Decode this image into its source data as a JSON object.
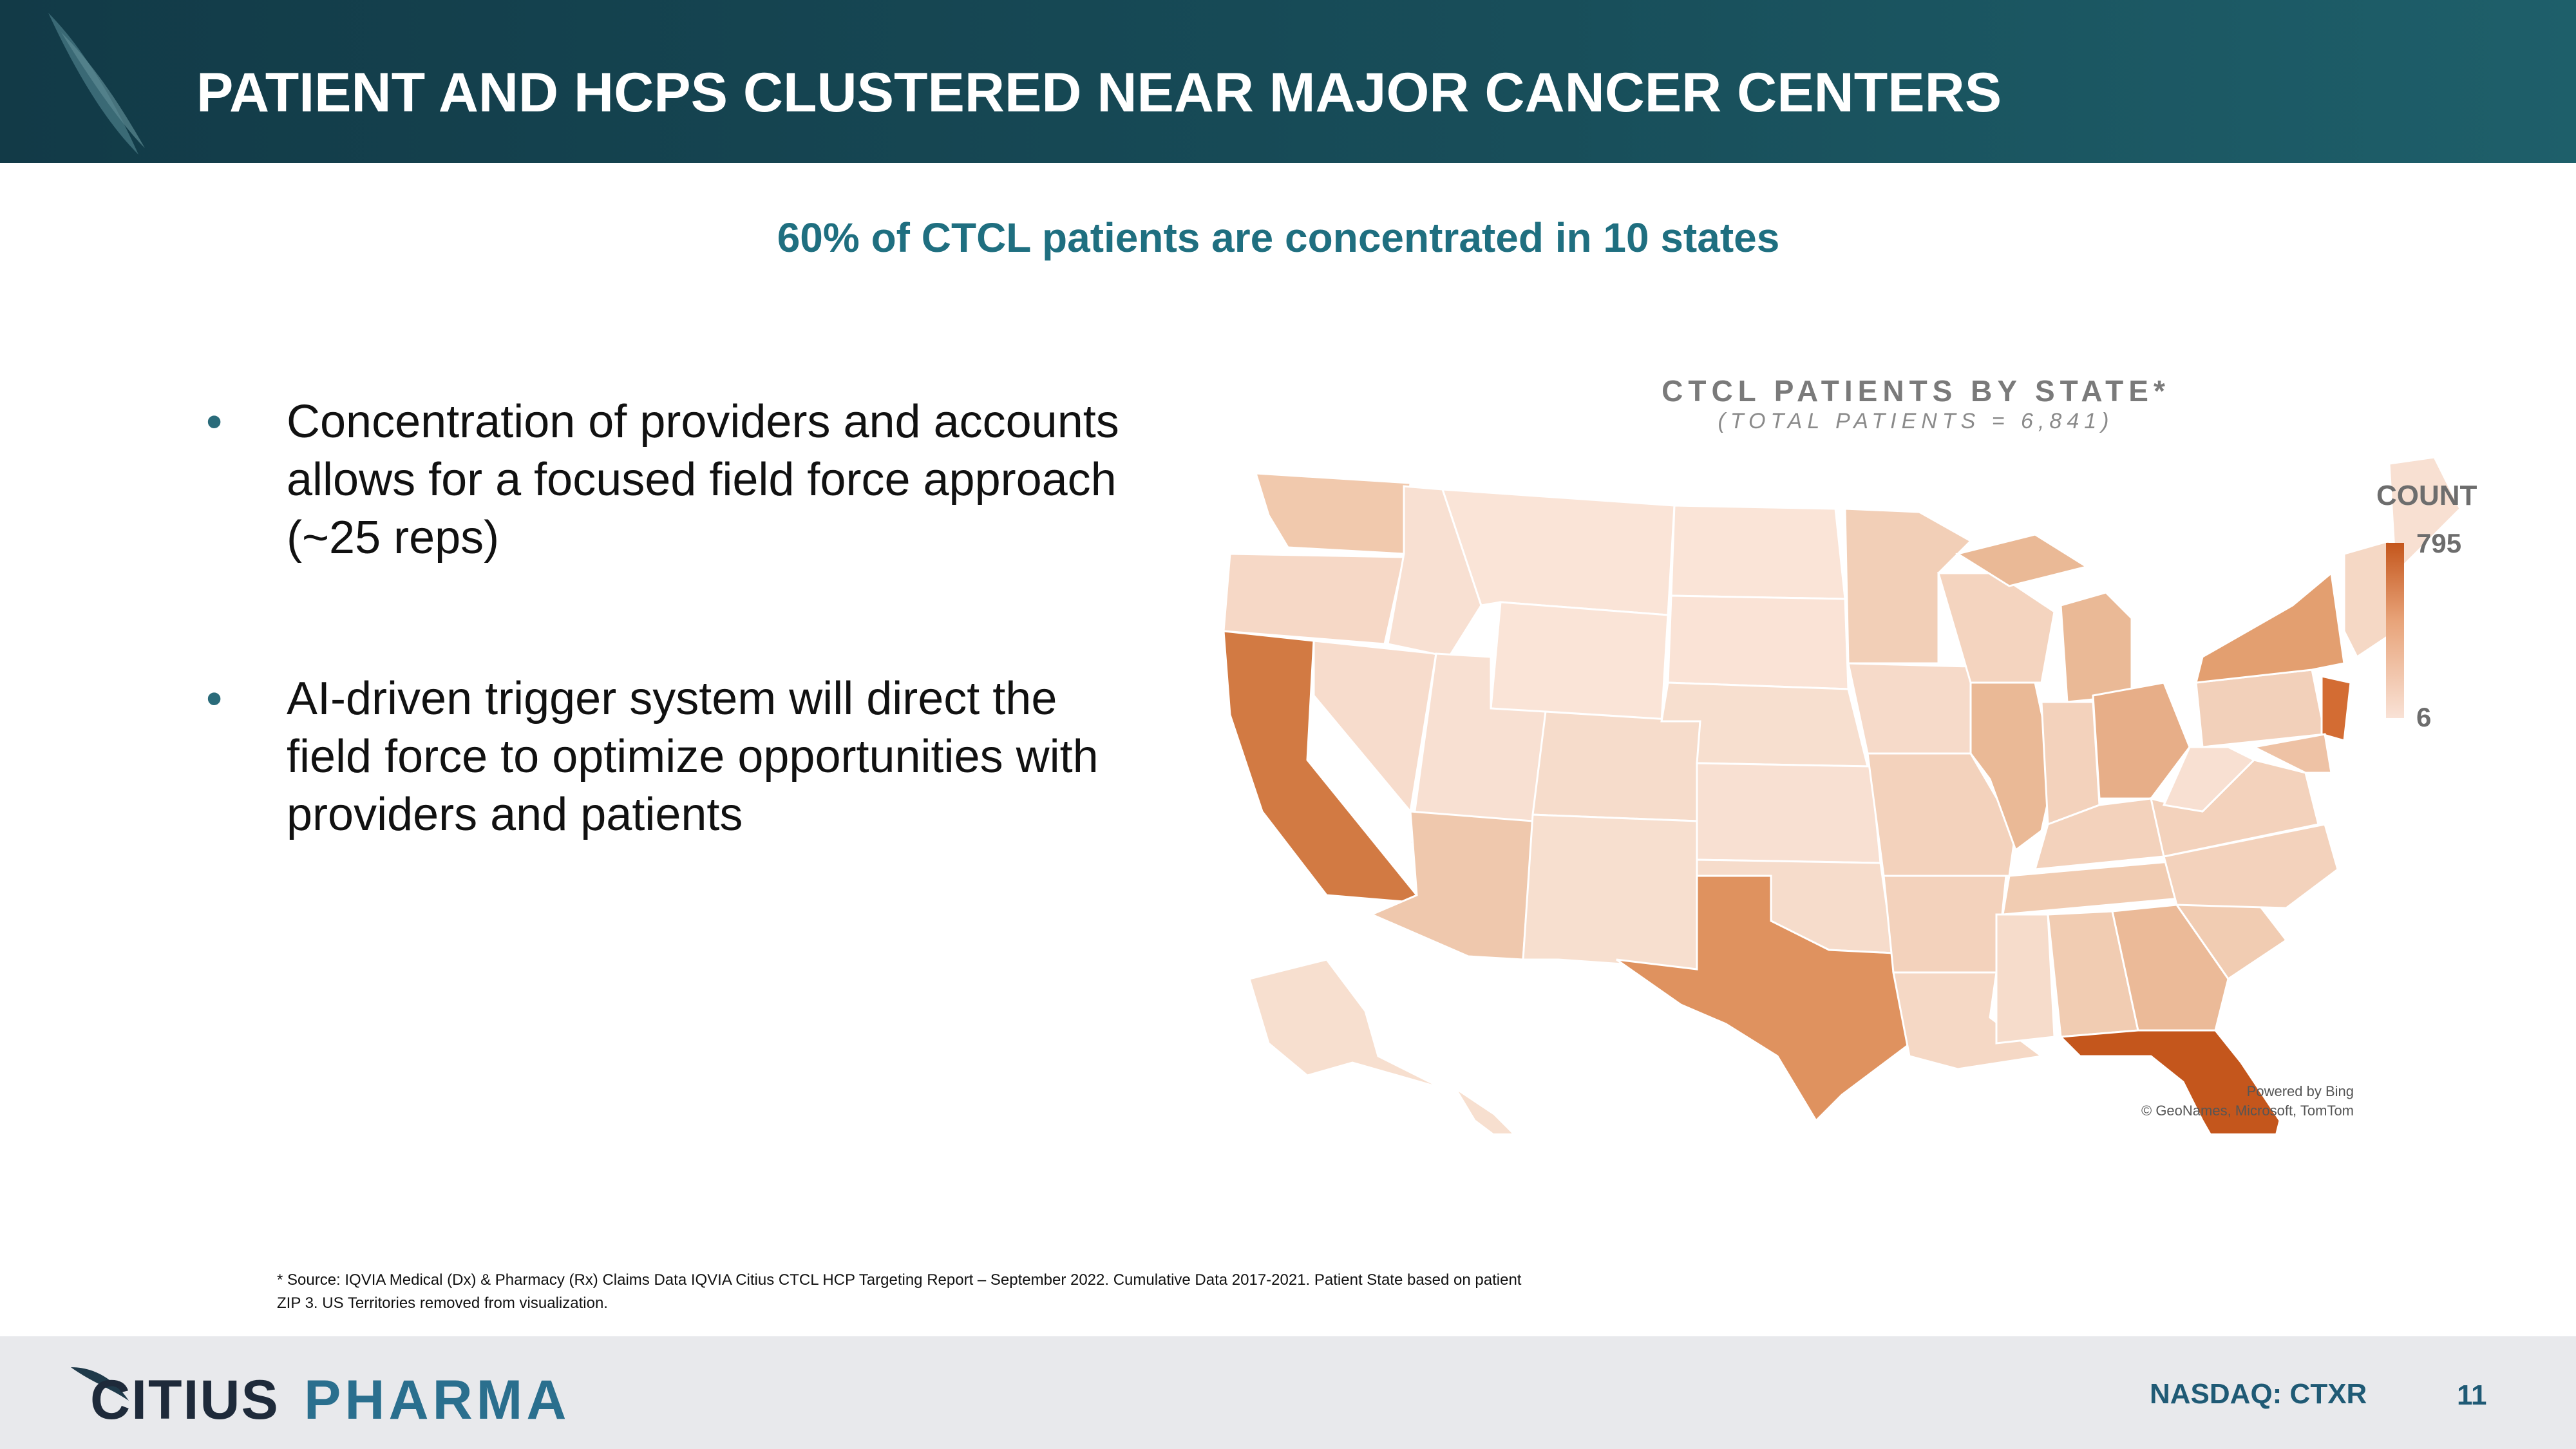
{
  "header": {
    "title": "PATIENT AND HCPS CLUSTERED NEAR MAJOR CANCER CENTERS"
  },
  "subtitle": "60% of CTCL patients are concentrated in 10 states",
  "bullets": [
    {
      "text": "Concentration of providers and accounts allows for a focused field force approach (~25 reps)"
    },
    {
      "text": "AI-driven trigger system will direct the field force to optimize opportunities with providers and patients"
    }
  ],
  "bullet_symbol": "•",
  "map": {
    "title": "CTCL PATIENTS BY STATE*",
    "subtitle": "(TOTAL PATIENTS = 6,841)",
    "legend": {
      "title": "COUNT",
      "max": "795",
      "min": "6"
    },
    "credit_line1": "Powered by Bing",
    "credit_line2": "© GeoNames, Microsoft, TomTom",
    "colors": {
      "high": "#c4561c",
      "mid": "#dc8a55",
      "low": "#f9e2d6"
    }
  },
  "footnote": {
    "line1": "* Source: IQVIA Medical (Dx) & Pharmacy (Rx) Claims Data IQVIA Citius CTCL HCP Targeting Report – September 2022.  Cumulative Data 2017-2021. Patient State based on patient",
    "line2": "ZIP 3. US Territories removed from visualization."
  },
  "footer": {
    "brand_part1": "CITIUS",
    "brand_part2": "PHARMA",
    "ticker": "NASDAQ: CTXR",
    "page_number": "11"
  }
}
